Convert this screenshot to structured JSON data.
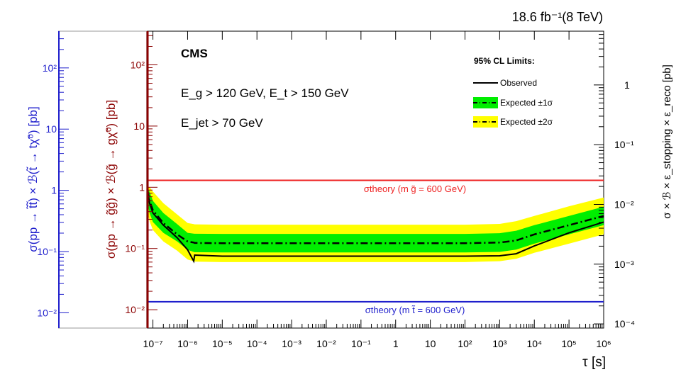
{
  "chart_data": {
    "type": "line",
    "lumi_label": "18.6 fb⁻¹(8 TeV)",
    "experiment": "CMS",
    "cuts": [
      "E_g > 120 GeV, E_t > 150 GeV",
      "E_jet > 70 GeV"
    ],
    "xlabel": "τ [s]",
    "xscale": "log",
    "xlim": [
      7e-08,
      1000000.0
    ],
    "xticks": [
      "10⁻⁷",
      "10⁻⁶",
      "10⁻⁵",
      "10⁻⁴",
      "10⁻³",
      "10⁻²",
      "10⁻¹",
      "1",
      "10",
      "10²",
      "10³",
      "10⁴",
      "10⁵",
      "10⁶"
    ],
    "ylabel_gluino": "σ(pp → g̃g̃) × ℬ(g̃ → gχ̃⁰)   [pb]",
    "yticks_gluino": [
      "10⁻²",
      "10⁻¹",
      "1",
      "10",
      "10²"
    ],
    "ylabel_stop": "σ(pp → t̃t̃) × ℬ(t̃ → tχ̃⁰)   [pb]",
    "yticks_stop": [
      "10⁻²",
      "10⁻¹",
      "1",
      "10",
      "10²"
    ],
    "ylabel_right": "σ × ℬ × ε_stopping × ε_reco   [pb]",
    "yticks_right": [
      "10⁻⁴",
      "10⁻³",
      "10⁻²",
      "10⁻¹",
      "1"
    ],
    "legend_title": "95% CL Limits:",
    "legend": [
      "Observed",
      "Expected ±1σ",
      "Expected ±2σ"
    ],
    "theory_gluino": {
      "label": "σtheory (m g̃ = 600 GeV)",
      "value": 1.3,
      "color": "#ee2222"
    },
    "theory_stop": {
      "label": "σtheory (m t̃ = 600 GeV)",
      "value": 0.0135,
      "color": "#1f1fcc"
    },
    "tau": [
      7e-08,
      8e-08,
      1e-07,
      2e-07,
      5e-07,
      1e-06,
      1.5e-06,
      1.6e-06,
      1e-05,
      0.001,
      1,
      100.0,
      1000.0,
      3000.0,
      10000.0,
      100000.0,
      1000000.0
    ],
    "observed": [
      0.9,
      0.55,
      0.38,
      0.24,
      0.15,
      0.095,
      0.062,
      0.078,
      0.075,
      0.075,
      0.075,
      0.075,
      0.076,
      0.082,
      0.11,
      0.18,
      0.27
    ],
    "expected": [
      0.9,
      0.6,
      0.42,
      0.26,
      0.17,
      0.13,
      0.125,
      0.123,
      0.122,
      0.122,
      0.122,
      0.122,
      0.125,
      0.135,
      0.17,
      0.24,
      0.34
    ],
    "band1_low": [
      0.55,
      0.38,
      0.27,
      0.18,
      0.13,
      0.095,
      0.088,
      0.087,
      0.086,
      0.086,
      0.086,
      0.086,
      0.088,
      0.096,
      0.12,
      0.17,
      0.24
    ],
    "band1_high": [
      1.0,
      0.85,
      0.6,
      0.38,
      0.25,
      0.18,
      0.175,
      0.174,
      0.173,
      0.173,
      0.173,
      0.173,
      0.178,
      0.195,
      0.24,
      0.34,
      0.48
    ],
    "band2_low": [
      0.4,
      0.28,
      0.2,
      0.13,
      0.092,
      0.066,
      0.062,
      0.061,
      0.06,
      0.06,
      0.06,
      0.06,
      0.062,
      0.068,
      0.085,
      0.12,
      0.17
    ],
    "band2_high": [
      1.0,
      1.0,
      0.85,
      0.55,
      0.36,
      0.26,
      0.25,
      0.248,
      0.245,
      0.245,
      0.245,
      0.245,
      0.252,
      0.28,
      0.34,
      0.49,
      0.68
    ],
    "colors": {
      "band1": "#00ee00",
      "band2": "#ffff00",
      "gluino_axis": "#8b0000",
      "stop_axis": "#1f1fcc"
    }
  }
}
